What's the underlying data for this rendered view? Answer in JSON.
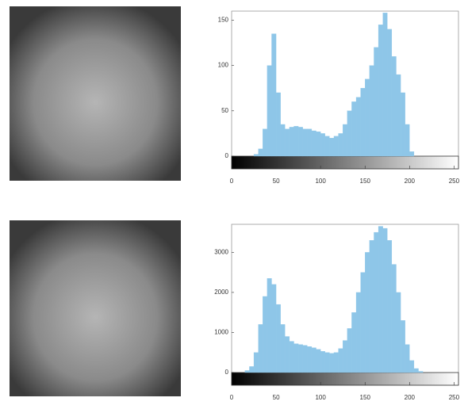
{
  "chart_data": [
    {
      "type": "histogram",
      "bins": [
        0,
        5,
        10,
        15,
        20,
        25,
        30,
        35,
        40,
        45,
        50,
        55,
        60,
        65,
        70,
        75,
        80,
        85,
        90,
        95,
        100,
        105,
        110,
        115,
        120,
        125,
        130,
        135,
        140,
        145,
        150,
        155,
        160,
        165,
        170,
        175,
        180,
        185,
        190,
        195,
        200,
        205,
        210,
        215,
        220,
        225,
        230,
        235,
        240,
        245,
        250,
        255
      ],
      "counts": [
        0,
        0,
        0,
        0,
        0,
        2,
        8,
        30,
        100,
        135,
        70,
        35,
        30,
        32,
        33,
        32,
        30,
        30,
        28,
        27,
        25,
        22,
        20,
        22,
        25,
        35,
        50,
        60,
        65,
        75,
        85,
        100,
        120,
        145,
        158,
        140,
        110,
        90,
        70,
        35,
        5,
        0,
        0,
        0,
        0,
        0,
        0,
        0,
        0,
        0,
        0
      ],
      "color": "#8ec6e8",
      "xlim": [
        0,
        255
      ],
      "xticks": [
        0,
        50,
        100,
        150,
        200,
        250
      ],
      "ylim": [
        0,
        160
      ],
      "yticks": [
        0,
        50,
        100,
        150
      ]
    },
    {
      "type": "histogram",
      "bins": [
        0,
        5,
        10,
        15,
        20,
        25,
        30,
        35,
        40,
        45,
        50,
        55,
        60,
        65,
        70,
        75,
        80,
        85,
        90,
        95,
        100,
        105,
        110,
        115,
        120,
        125,
        130,
        135,
        140,
        145,
        150,
        155,
        160,
        165,
        170,
        175,
        180,
        185,
        190,
        195,
        200,
        205,
        210,
        215,
        220,
        225,
        230,
        235,
        240,
        245,
        250,
        255
      ],
      "counts": [
        0,
        0,
        0,
        50,
        150,
        500,
        1200,
        1900,
        2350,
        2200,
        1700,
        1200,
        900,
        780,
        720,
        700,
        680,
        650,
        620,
        580,
        530,
        500,
        480,
        500,
        600,
        800,
        1100,
        1500,
        2000,
        2500,
        3000,
        3300,
        3500,
        3650,
        3600,
        3300,
        2700,
        2000,
        1300,
        700,
        300,
        100,
        30,
        0,
        0,
        0,
        0,
        0,
        0,
        0,
        0
      ],
      "color": "#8ec6e8",
      "xlim": [
        0,
        255
      ],
      "xticks": [
        0,
        50,
        100,
        150,
        200,
        250
      ],
      "ylim": [
        0,
        3700
      ],
      "yticks": [
        0,
        1000,
        2000,
        3000
      ]
    }
  ]
}
